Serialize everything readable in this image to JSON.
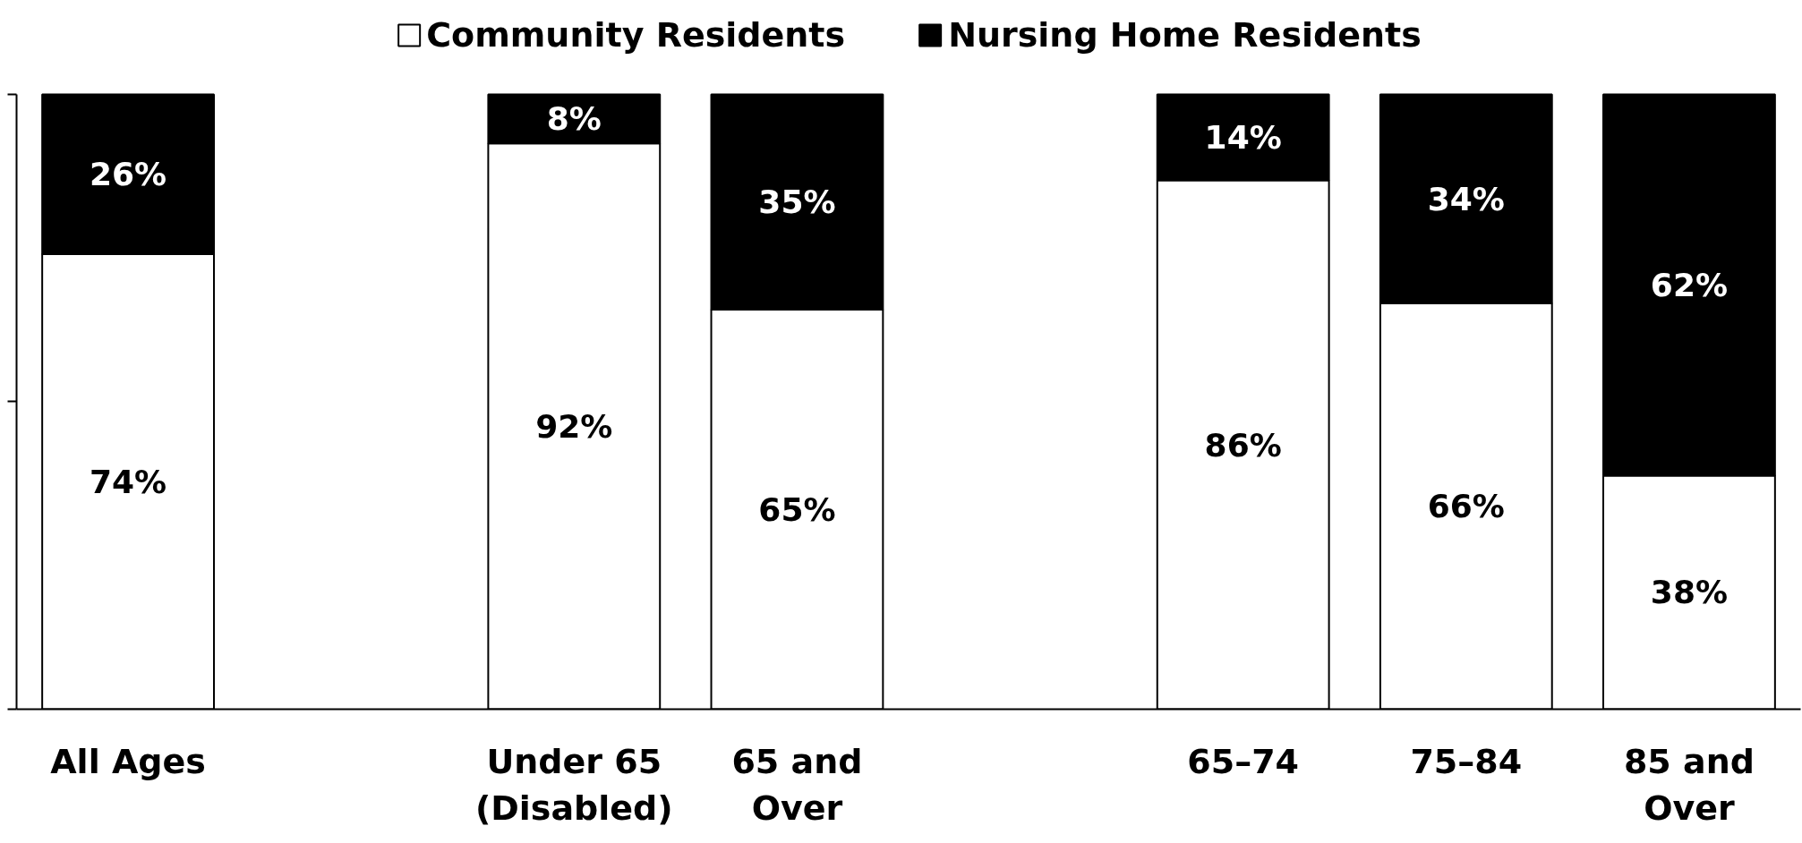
{
  "chart_data": {
    "type": "bar",
    "stacked": true,
    "categories": [
      "All Ages",
      null,
      "Under 65\n(Disabled)",
      "65 and\nOver",
      null,
      "65–74",
      "75–84",
      "85 and\nOver"
    ],
    "series": [
      {
        "name": "Community Residents",
        "color": "#ffffff",
        "values": [
          74,
          null,
          92,
          65,
          null,
          86,
          66,
          38
        ],
        "value_labels": [
          "74%",
          null,
          "92%",
          "65%",
          null,
          "86%",
          "66%",
          "38%"
        ]
      },
      {
        "name": "Nursing Home Residents",
        "color": "#000000",
        "values": [
          26,
          null,
          8,
          35,
          null,
          14,
          34,
          62
        ],
        "value_labels": [
          "26%",
          null,
          "8%",
          "35%",
          null,
          "14%",
          "34%",
          "62%"
        ]
      }
    ],
    "ylim": [
      0,
      100
    ],
    "yticks": [
      {
        "value": 0,
        "label": null
      },
      {
        "value": 50,
        "label": null
      },
      {
        "value": 100,
        "label": null
      }
    ],
    "tick_labels": "x",
    "grid": false,
    "legend": "top"
  }
}
